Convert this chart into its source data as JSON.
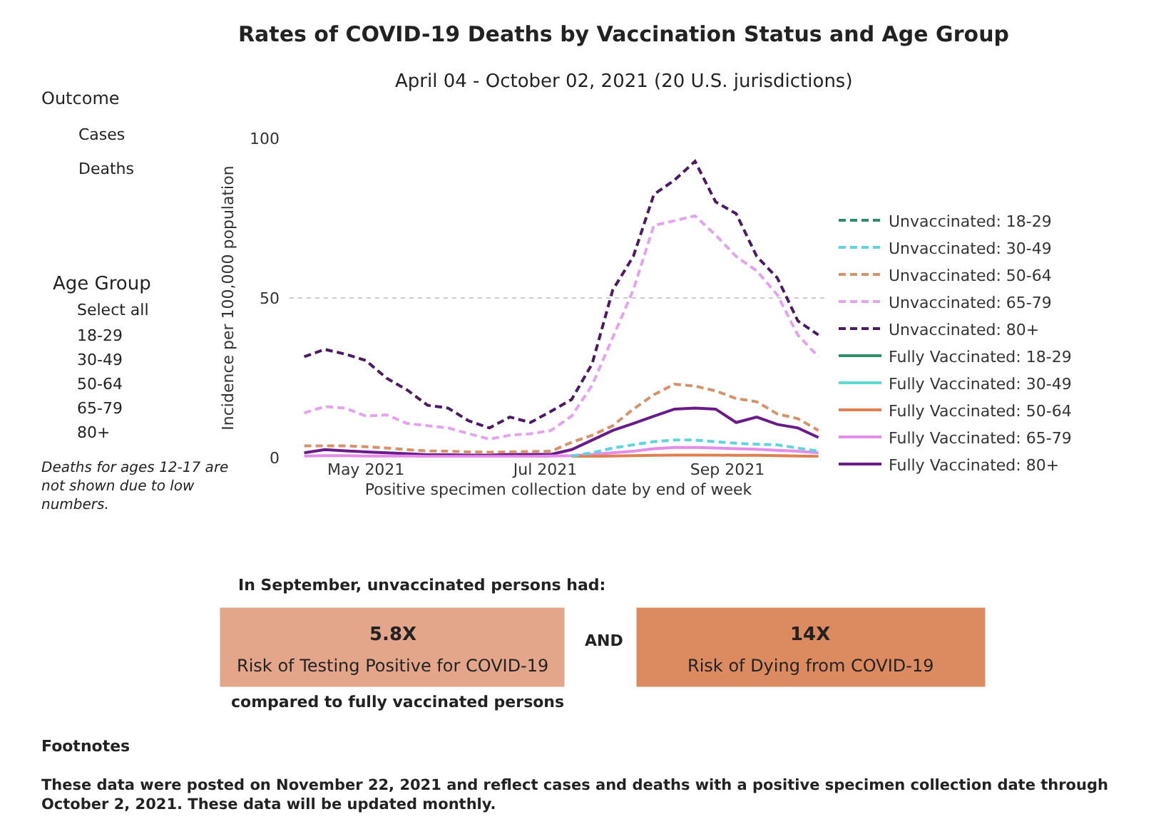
{
  "chart_data": {
    "type": "line",
    "title": "Rates of COVID-19 Deaths by Vaccination Status and Age Group",
    "subtitle": "April 04 - October 02, 2021 (20 U.S. jurisdictions)",
    "xlabel": "Positive specimen collection date by end of week",
    "ylabel": "Incidence per 100,000 population",
    "x": [
      "2021-04-10",
      "2021-04-17",
      "2021-04-24",
      "2021-05-01",
      "2021-05-08",
      "2021-05-15",
      "2021-05-22",
      "2021-05-29",
      "2021-06-05",
      "2021-06-12",
      "2021-06-19",
      "2021-06-26",
      "2021-07-03",
      "2021-07-10",
      "2021-07-17",
      "2021-07-24",
      "2021-07-31",
      "2021-08-07",
      "2021-08-14",
      "2021-08-21",
      "2021-08-28",
      "2021-09-04",
      "2021-09-11",
      "2021-09-18",
      "2021-09-25",
      "2021-10-02"
    ],
    "series": [
      {
        "name": "Unvaccinated: 18-29",
        "color": "#2e8b6e",
        "line_style": "dashed",
        "values": [
          null,
          null,
          null,
          null,
          null,
          null,
          null,
          null,
          null,
          null,
          null,
          null,
          null,
          null,
          null,
          null,
          null,
          null,
          null,
          null,
          null,
          null,
          null,
          null,
          null,
          null
        ]
      },
      {
        "name": "Unvaccinated: 30-49",
        "color": "#5fd3e0",
        "line_style": "dashed",
        "values": [
          null,
          null,
          null,
          null,
          null,
          null,
          null,
          null,
          null,
          null,
          null,
          null,
          null,
          0.5,
          1.5,
          3,
          4,
          5,
          5.5,
          5.5,
          5,
          4.5,
          4.2,
          4,
          3,
          2
        ]
      },
      {
        "name": "Unvaccinated: 50-64",
        "color": "#d6926a",
        "line_style": "dashed",
        "values": [
          3.7,
          3.7,
          3.7,
          3.4,
          3,
          2.5,
          2.1,
          2,
          1.8,
          1.7,
          1.8,
          1.9,
          2,
          4.8,
          7,
          10,
          15.2,
          19.7,
          23,
          22.4,
          20.9,
          18.5,
          17.5,
          13.7,
          12.2,
          8.5
        ]
      },
      {
        "name": "Unvaccinated: 65-79",
        "color": "#e3a3ef",
        "line_style": "dashed",
        "values": [
          14,
          16,
          15.5,
          13,
          13.4,
          10.7,
          10,
          9.3,
          7.5,
          5.8,
          7,
          7.5,
          8.5,
          13,
          22.7,
          37.6,
          52.5,
          72.7,
          74.2,
          75.7,
          69.7,
          63,
          58.5,
          51,
          38.4,
          31.6
        ]
      },
      {
        "name": "Unvaccinated: 80+",
        "color": "#4b1a63",
        "line_style": "dashed",
        "values": [
          31.6,
          33.9,
          32.4,
          30.4,
          24.9,
          21.2,
          16.4,
          15.5,
          11.5,
          9.3,
          12.7,
          11,
          14.5,
          18.2,
          29.4,
          52.5,
          63,
          82.4,
          86.9,
          92.8,
          80.1,
          76.4,
          63,
          56.3,
          42.8,
          38.4
        ]
      },
      {
        "name": "Fully Vaccinated: 18-29",
        "color": "#2f8f6a",
        "line_style": "solid",
        "values": [
          null,
          null,
          null,
          null,
          null,
          null,
          null,
          null,
          null,
          null,
          null,
          null,
          null,
          null,
          null,
          null,
          null,
          null,
          null,
          null,
          null,
          null,
          null,
          null,
          null,
          null
        ]
      },
      {
        "name": "Fully Vaccinated: 30-49",
        "color": "#5fd8d8",
        "line_style": "solid",
        "values": [
          null,
          null,
          null,
          null,
          null,
          null,
          null,
          null,
          null,
          null,
          null,
          null,
          null,
          null,
          null,
          null,
          null,
          null,
          null,
          null,
          null,
          null,
          null,
          null,
          null,
          null
        ]
      },
      {
        "name": "Fully Vaccinated: 50-64",
        "color": "#e08050",
        "line_style": "solid",
        "values": [
          null,
          null,
          null,
          null,
          null,
          null,
          null,
          null,
          null,
          null,
          null,
          null,
          null,
          0.3,
          0.4,
          0.5,
          0.6,
          0.7,
          0.8,
          0.8,
          0.8,
          0.7,
          0.7,
          0.6,
          0.5,
          0.4
        ]
      },
      {
        "name": "Fully Vaccinated: 65-79",
        "color": "#e58be8",
        "line_style": "solid",
        "values": [
          0.5,
          0.6,
          0.6,
          0.5,
          0.5,
          0.5,
          0.4,
          0.4,
          0.4,
          0.4,
          0.4,
          0.4,
          0.5,
          0.6,
          1,
          1.5,
          2,
          2.8,
          3.2,
          3.2,
          3,
          2.8,
          2.6,
          2.3,
          2,
          1.5
        ]
      },
      {
        "name": "Fully Vaccinated: 80+",
        "color": "#6a1b8a",
        "line_style": "solid",
        "values": [
          1.5,
          2.5,
          2.1,
          1.8,
          1.5,
          1.2,
          0.9,
          0.9,
          0.8,
          0.8,
          1,
          1,
          1,
          2.5,
          5.5,
          8.5,
          10.7,
          13,
          15.2,
          15.5,
          15.2,
          11,
          12.7,
          10.4,
          9.3,
          6.3
        ]
      }
    ],
    "xlim": [
      "2021-04-05",
      "2021-10-05"
    ],
    "xticks": [
      {
        "value": "2021-05-01",
        "label": "May 2021"
      },
      {
        "value": "2021-07-01",
        "label": "Jul 2021"
      },
      {
        "value": "2021-09-01",
        "label": "Sep 2021"
      }
    ],
    "ylim": [
      0,
      100
    ],
    "yticks": [
      0,
      50,
      100
    ],
    "grid": "y",
    "legend": "right",
    "annotations": [
      "Outcome",
      "Cases",
      "Deaths",
      "Age Group",
      "Select all",
      "18-29",
      "30-49",
      "50-64",
      "65-79",
      "80+",
      "Deaths for ages 12-17 are not shown due to low numbers.",
      "In September, unvaccinated persons had:",
      "5.8X",
      "Risk of Testing Positive for COVID-19",
      "AND",
      "14X",
      "Risk of Dying from COVID-19",
      "compared to fully vaccinated persons",
      "Footnotes",
      "These data were posted on November 22, 2021 and reflect cases and deaths with a positive specimen collection date through October 2, 2021. These data will be updated monthly."
    ]
  }
}
